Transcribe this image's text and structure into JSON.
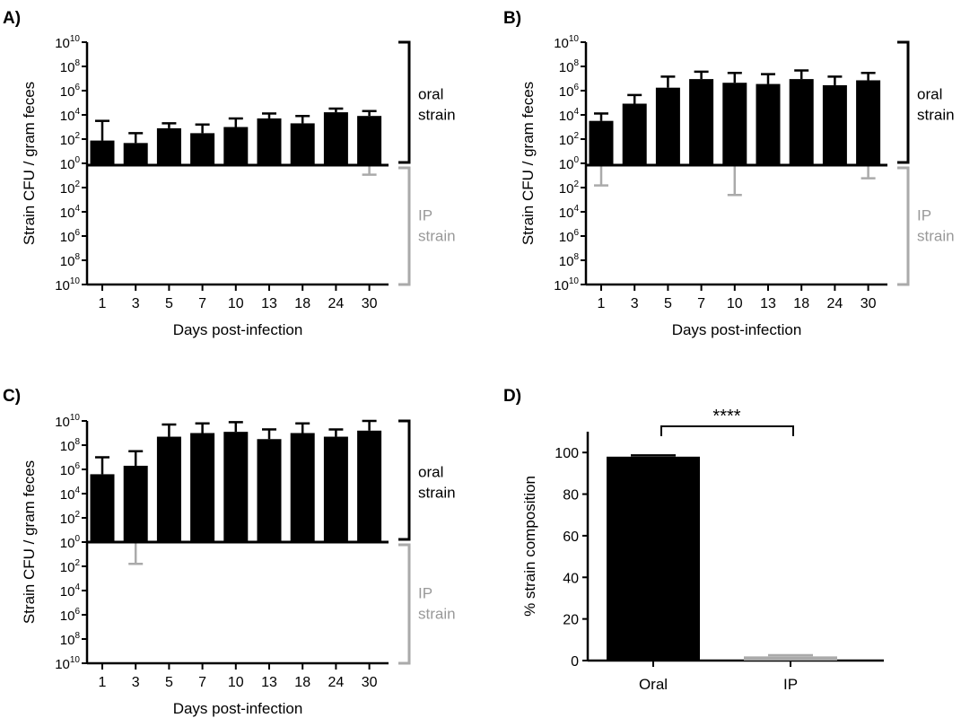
{
  "chart_data": [
    {
      "panel": "A)",
      "type": "bar",
      "ylabel": "Strain CFU / gram feces",
      "xlabel": "Days post-infection",
      "categories": [
        "1",
        "3",
        "5",
        "7",
        "10",
        "13",
        "18",
        "24",
        "30"
      ],
      "y_tick_exponents": [
        10,
        8,
        6,
        4,
        2,
        0,
        2,
        4,
        6,
        8,
        10
      ],
      "y_scale": "log10, mirrored about 10^0",
      "ylim_log10": [
        0,
        10
      ],
      "bracket_labels": {
        "oral": [
          "oral",
          "strain"
        ],
        "ip": [
          "IP",
          "strain"
        ]
      },
      "colors": {
        "oral": "#000000",
        "ip": "#aaaaaa"
      },
      "series": [
        {
          "name": "oral strain",
          "values_log10": [
            2.0,
            1.8,
            3.0,
            2.6,
            3.1,
            3.8,
            3.4,
            4.3,
            4.0
          ],
          "error_top_log10": [
            3.6,
            2.6,
            3.4,
            3.3,
            3.8,
            4.2,
            4.0,
            4.6,
            4.4
          ]
        },
        {
          "name": "IP strain",
          "values_log10": [
            0,
            0,
            0,
            0,
            0,
            0,
            0,
            0,
            0
          ],
          "error_top_log10": [
            null,
            null,
            null,
            null,
            null,
            null,
            null,
            null,
            0.8
          ]
        }
      ]
    },
    {
      "panel": "B)",
      "type": "bar",
      "ylabel": "Strain CFU / gram feces",
      "xlabel": "Days post-infection",
      "categories": [
        "1",
        "3",
        "5",
        "7",
        "10",
        "13",
        "18",
        "24",
        "30"
      ],
      "y_tick_exponents": [
        10,
        8,
        6,
        4,
        2,
        0,
        2,
        4,
        6,
        8,
        10
      ],
      "y_scale": "log10, mirrored about 10^0",
      "ylim_log10": [
        0,
        10
      ],
      "bracket_labels": {
        "oral": [
          "oral",
          "strain"
        ],
        "ip": [
          "IP",
          "strain"
        ]
      },
      "colors": {
        "oral": "#000000",
        "ip": "#aaaaaa"
      },
      "series": [
        {
          "name": "oral strain",
          "values_log10": [
            3.6,
            5.0,
            6.3,
            7.0,
            6.7,
            6.6,
            7.0,
            6.5,
            6.9
          ],
          "error_top_log10": [
            4.2,
            5.7,
            7.2,
            7.6,
            7.5,
            7.4,
            7.7,
            7.2,
            7.5
          ]
        },
        {
          "name": "IP strain",
          "values_log10": [
            0,
            0,
            0,
            0,
            0,
            0,
            0,
            0,
            0
          ],
          "error_top_log10": [
            1.7,
            null,
            null,
            null,
            2.5,
            null,
            null,
            null,
            1.1
          ]
        }
      ]
    },
    {
      "panel": "C)",
      "type": "bar",
      "ylabel": "Strain CFU / gram feces",
      "xlabel": "Days post-infection",
      "categories": [
        "1",
        "3",
        "5",
        "7",
        "10",
        "13",
        "18",
        "24",
        "30"
      ],
      "y_tick_exponents": [
        10,
        8,
        6,
        4,
        2,
        0,
        2,
        4,
        6,
        8,
        10
      ],
      "y_scale": "log10, mirrored about 10^0",
      "ylim_log10": [
        0,
        10
      ],
      "bracket_labels": {
        "oral": [
          "oral",
          "strain"
        ],
        "ip": [
          "IP",
          "strain"
        ]
      },
      "colors": {
        "oral": "#000000",
        "ip": "#aaaaaa"
      },
      "series": [
        {
          "name": "oral strain",
          "values_log10": [
            5.6,
            6.3,
            8.7,
            9.0,
            9.1,
            8.5,
            9.0,
            8.7,
            9.2
          ],
          "error_top_log10": [
            7.0,
            7.5,
            9.7,
            9.8,
            9.9,
            9.3,
            9.8,
            9.3,
            10.0
          ]
        },
        {
          "name": "IP strain",
          "values_log10": [
            0,
            0,
            0,
            0,
            0,
            0,
            0,
            0,
            0
          ],
          "error_top_log10": [
            null,
            1.8,
            null,
            null,
            null,
            null,
            null,
            null,
            null
          ]
        }
      ]
    },
    {
      "panel": "D)",
      "type": "bar",
      "ylabel": "% strain composition",
      "xlabel": "",
      "categories": [
        "Oral",
        "IP"
      ],
      "values": [
        98,
        2
      ],
      "errors": [
        0.6,
        0.6
      ],
      "ylim": [
        0,
        110
      ],
      "yticks": [
        0,
        20,
        40,
        60,
        80,
        100
      ],
      "bar_colors": [
        "#000000",
        "#aaaaaa"
      ],
      "significance": "****"
    }
  ]
}
